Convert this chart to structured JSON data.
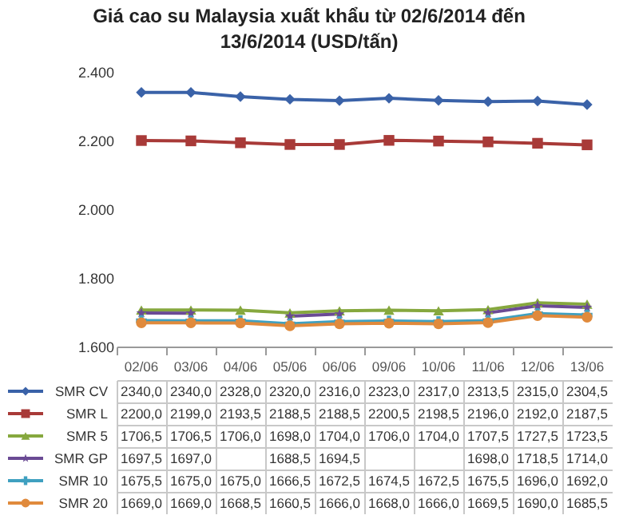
{
  "chart_data": {
    "type": "line",
    "title": "Giá cao su Malaysia xuất khẩu từ 02/6/2014 đến 13/6/2014  (USD/tấn)",
    "categories": [
      "02/06",
      "03/06",
      "04/06",
      "05/06",
      "06/06",
      "09/06",
      "10/06",
      "11/06",
      "12/06",
      "13/06"
    ],
    "ylim": [
      1600,
      2400
    ],
    "yticks": [
      {
        "value": 1600,
        "label": "1.600"
      },
      {
        "value": 1800,
        "label": "1.800"
      },
      {
        "value": 2000,
        "label": "2.000"
      },
      {
        "value": 2200,
        "label": "2.200"
      },
      {
        "value": 2400,
        "label": "2.400"
      }
    ],
    "grid": false,
    "legend": "bottom",
    "series": [
      {
        "name": "SMR CV",
        "color": "#3a62a8",
        "marker": "diamond",
        "values": [
          2340.0,
          2340.0,
          2328.0,
          2320.0,
          2316.0,
          2323.0,
          2317.0,
          2313.5,
          2315.0,
          2304.5
        ],
        "value_labels": [
          "2340,0",
          "2340,0",
          "2328,0",
          "2320,0",
          "2316,0",
          "2323,0",
          "2317,0",
          "2313,5",
          "2315,0",
          "2304,5"
        ]
      },
      {
        "name": "SMR L",
        "color": "#a83a38",
        "marker": "square",
        "values": [
          2200.0,
          2199.0,
          2193.5,
          2188.5,
          2188.5,
          2200.5,
          2198.5,
          2196.0,
          2192.0,
          2187.5
        ],
        "value_labels": [
          "2200,0",
          "2199,0",
          "2193,5",
          "2188,5",
          "2188,5",
          "2200,5",
          "2198,5",
          "2196,0",
          "2192,0",
          "2187,5"
        ]
      },
      {
        "name": "SMR  5",
        "color": "#86a83e",
        "marker": "triangle",
        "values": [
          1706.5,
          1706.5,
          1706.0,
          1698.0,
          1704.0,
          1706.0,
          1704.0,
          1707.5,
          1727.5,
          1723.5
        ],
        "value_labels": [
          "1706,5",
          "1706,5",
          "1706,0",
          "1698,0",
          "1704,0",
          "1706,0",
          "1704,0",
          "1707,5",
          "1727,5",
          "1723,5"
        ]
      },
      {
        "name": "SMR GP",
        "color": "#6a4a94",
        "marker": "star",
        "values": [
          1697.5,
          1697.0,
          null,
          1688.5,
          1694.5,
          null,
          null,
          1698.0,
          1718.5,
          1714.0
        ],
        "value_labels": [
          "1697,5",
          "1697,0",
          null,
          "1688,5",
          "1694,5",
          null,
          null,
          "1698,0",
          "1718,5",
          "1714,0"
        ]
      },
      {
        "name": "SMR  10",
        "color": "#3fa0c0",
        "marker": "cross",
        "values": [
          1675.5,
          1675.0,
          1675.0,
          1666.5,
          1672.5,
          1674.5,
          1672.5,
          1675.5,
          1696.0,
          1692.0
        ],
        "value_labels": [
          "1675,5",
          "1675,0",
          "1675,0",
          "1666,5",
          "1672,5",
          "1674,5",
          "1672,5",
          "1675,5",
          "1696,0",
          "1692,0"
        ]
      },
      {
        "name": "SMR 20",
        "color": "#e08a3c",
        "marker": "circle",
        "values": [
          1669.0,
          1669.0,
          1668.5,
          1660.5,
          1666.0,
          1668.0,
          1666.0,
          1669.5,
          1690.0,
          1685.5
        ],
        "value_labels": [
          "1669,0",
          "1669,0",
          "1668,5",
          "1660,5",
          "1666,0",
          "1668,0",
          "1666,0",
          "1669,5",
          "1690,0",
          "1685,5"
        ]
      }
    ]
  }
}
